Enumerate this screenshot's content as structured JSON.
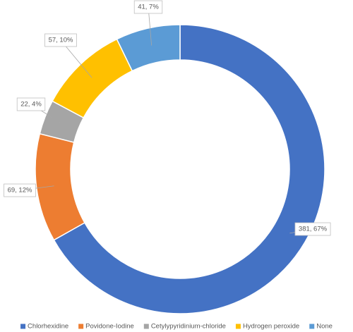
{
  "chart_data": {
    "type": "donut",
    "categories": [
      "Chlorhexidine",
      "Povidone-Iodine",
      "Cetylypyridinium-chloride",
      "Hydrogen peroxide",
      "None"
    ],
    "values": [
      381,
      69,
      22,
      57,
      41
    ],
    "value_labels": [
      "381, 67%",
      "69, 12%",
      "22, 4%",
      "57, 10%",
      "41, 7%"
    ],
    "colors": [
      "#4472c4",
      "#ed7d31",
      "#a5a5a5",
      "#ffc000",
      "#5b9bd5"
    ],
    "legend": "bottom"
  }
}
